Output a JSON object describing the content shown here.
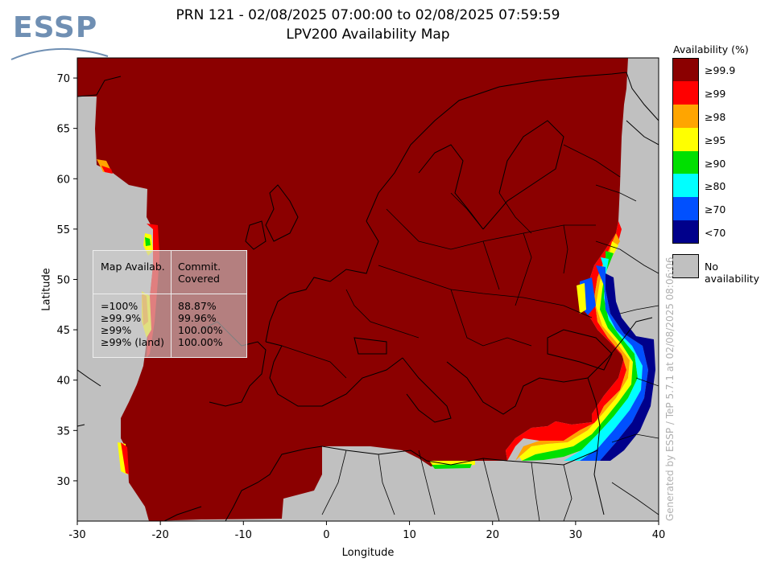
{
  "logo": {
    "text": "ESSP",
    "color": "#6f8fb3"
  },
  "title": {
    "line1": "PRN 121 - 02/08/2025 07:00:00 to 02/08/2025 07:59:59",
    "line2": "LPV200 Availability Map"
  },
  "chart_data": {
    "type": "heatmap",
    "xlabel": "Longitude",
    "ylabel": "Latitude",
    "xlim": [
      -30,
      40
    ],
    "ylim": [
      26,
      72
    ],
    "x_ticks": [
      "-30",
      "-20",
      "-10",
      "0",
      "10",
      "20",
      "30",
      "40"
    ],
    "y_ticks": [
      "30",
      "35",
      "40",
      "45",
      "50",
      "55",
      "60",
      "65",
      "70"
    ],
    "background": "No availability"
  },
  "legend": {
    "title": "Availability (%)",
    "entries": [
      {
        "label": "≥99.9",
        "color": "#8b0000"
      },
      {
        "label": "≥99",
        "color": "#ff0000"
      },
      {
        "label": "≥98",
        "color": "#ffa500"
      },
      {
        "label": "≥95",
        "color": "#ffff00"
      },
      {
        "label": "≥90",
        "color": "#00e000"
      },
      {
        "label": "≥80",
        "color": "#00ffff"
      },
      {
        "label": "≥70",
        "color": "#0050ff"
      },
      {
        "label": "<70",
        "color": "#00008b"
      }
    ],
    "no_availability": {
      "label": "No availability",
      "color": "#c0c0c0"
    }
  },
  "stats": {
    "header_left": "Map Availab.",
    "header_right": "Commit. Covered",
    "rows": [
      {
        "label": "=100%",
        "value": "88.87%"
      },
      {
        "label": "≥99.9%",
        "value": "99.96%"
      },
      {
        "label": "≥99%",
        "value": "100.00%"
      },
      {
        "label": "≥99% (land)",
        "value": "100.00%"
      }
    ]
  },
  "credit": "Generated by ESSP / TeP 5.7.1 at 02/08/2025 08:06:06"
}
